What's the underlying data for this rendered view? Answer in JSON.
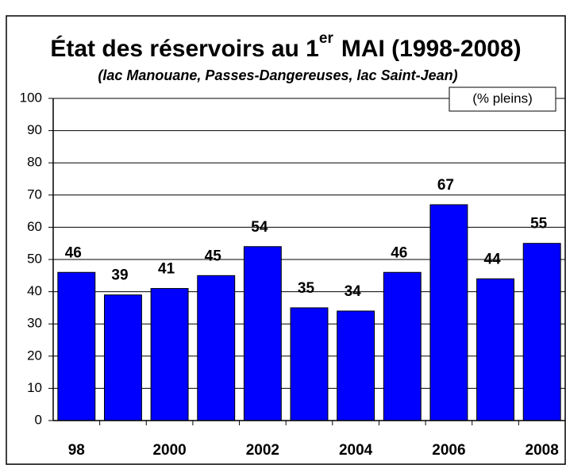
{
  "chart_data": {
    "type": "bar",
    "title": "État des réservoirs au 1",
    "title_superscript": "er",
    "title_suffix": "MAI (1998-2008)",
    "subtitle": "(lac Manouane, Passes-Dangereuses, lac Saint-Jean)",
    "unit_label": "(% pleins)",
    "categories": [
      "98",
      null,
      "2000",
      null,
      "2002",
      null,
      "2004",
      null,
      "2006",
      null,
      "2008"
    ],
    "values": [
      46,
      39,
      41,
      45,
      54,
      35,
      34,
      46,
      67,
      44,
      55
    ],
    "color": "#0000ff",
    "ylim": [
      0,
      100
    ],
    "yticks": [
      0,
      10,
      20,
      30,
      40,
      50,
      60,
      70,
      80,
      90,
      100
    ],
    "grid": true
  }
}
